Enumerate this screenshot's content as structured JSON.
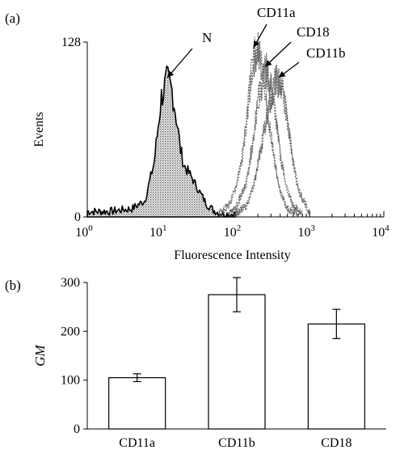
{
  "panels": {
    "a_label": "(a)",
    "b_label": "(b)"
  },
  "chart_data": [
    {
      "type": "line",
      "panel": "(a)",
      "xlabel": "Fluorescence Intensity",
      "ylabel": "Events",
      "x_scale": "log",
      "xlim": [
        1,
        10000
      ],
      "ylim": [
        0,
        128
      ],
      "x_ticks": [
        {
          "value": 1,
          "base": "10",
          "exp": "0"
        },
        {
          "value": 10,
          "base": "10",
          "exp": "1"
        },
        {
          "value": 100,
          "base": "10",
          "exp": "2"
        },
        {
          "value": 1000,
          "base": "10",
          "exp": "3"
        },
        {
          "value": 10000,
          "base": "10",
          "exp": "4"
        }
      ],
      "y_ticks": [
        "0",
        "128"
      ],
      "series": [
        {
          "name": "N",
          "filled": true,
          "x": [
            1,
            2,
            4,
            6,
            8,
            10,
            12,
            14,
            16,
            18,
            20,
            25,
            30,
            40,
            50,
            60,
            80,
            100
          ],
          "y": [
            4,
            4,
            6,
            12,
            40,
            88,
            100,
            92,
            72,
            50,
            38,
            30,
            22,
            10,
            5,
            3,
            2,
            2
          ]
        },
        {
          "name": "CD11a",
          "filled": false,
          "x": [
            60,
            80,
            100,
            120,
            140,
            160,
            180,
            200,
            230,
            260,
            300,
            350,
            400,
            500,
            700
          ],
          "y": [
            3,
            8,
            20,
            40,
            70,
            100,
            118,
            122,
            110,
            88,
            60,
            35,
            18,
            6,
            2
          ]
        },
        {
          "name": "CD18",
          "filled": false,
          "x": [
            80,
            100,
            140,
            170,
            200,
            230,
            260,
            300,
            350,
            400,
            500,
            600,
            800
          ],
          "y": [
            2,
            6,
            25,
            55,
            85,
            100,
            108,
            95,
            72,
            45,
            20,
            8,
            2
          ]
        },
        {
          "name": "CD11b",
          "filled": false,
          "x": [
            100,
            140,
            180,
            220,
            260,
            300,
            350,
            400,
            450,
            500,
            600,
            700,
            1000
          ],
          "y": [
            2,
            8,
            25,
            50,
            72,
            88,
            100,
            98,
            88,
            70,
            40,
            20,
            3
          ]
        }
      ]
    },
    {
      "type": "bar",
      "panel": "(b)",
      "ylabel": "GM",
      "categories": [
        "CD11a",
        "CD11b",
        "CD18"
      ],
      "values": [
        105,
        275,
        215
      ],
      "error": [
        8,
        35,
        30
      ],
      "ylim": [
        0,
        300
      ],
      "y_ticks": [
        "0",
        "100",
        "200",
        "300"
      ]
    }
  ]
}
